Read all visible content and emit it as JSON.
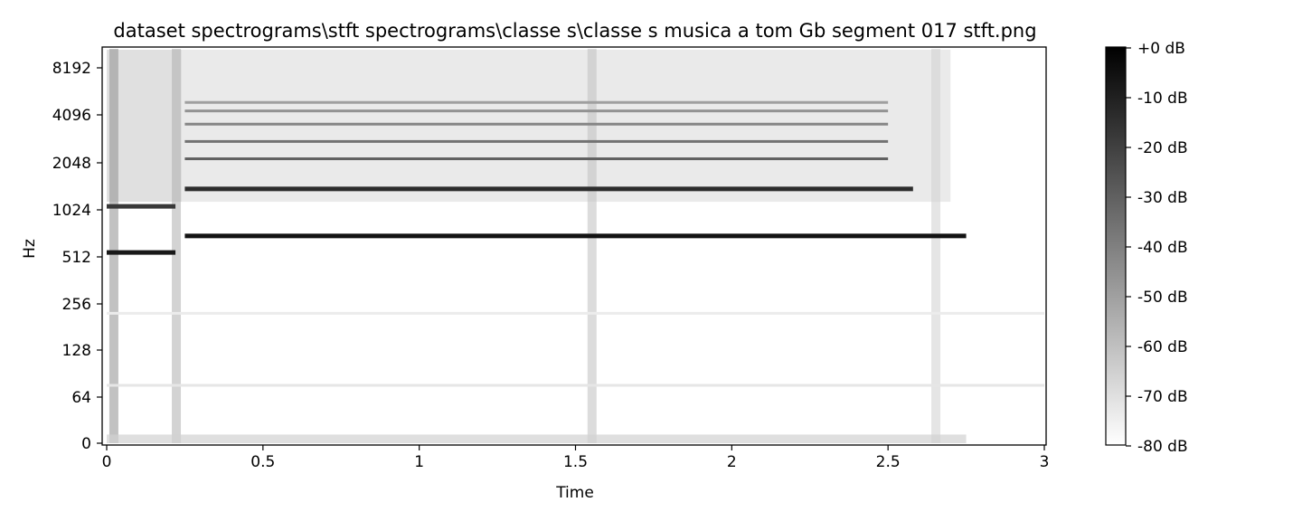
{
  "chart_data": {
    "type": "heatmap",
    "title": "dataset spectrograms\\stft spectrograms\\classe s\\classe s musica a tom Gb segment 017 stft.png",
    "xlabel": "Time",
    "ylabel": "Hz",
    "x_ticks": [
      {
        "value": 0,
        "label": "0"
      },
      {
        "value": 0.5,
        "label": "0.5"
      },
      {
        "value": 1,
        "label": "1"
      },
      {
        "value": 1.5,
        "label": "1.5"
      },
      {
        "value": 2,
        "label": "2"
      },
      {
        "value": 2.5,
        "label": "2.5"
      },
      {
        "value": 3,
        "label": "3"
      }
    ],
    "y_ticks": [
      {
        "value": 0,
        "label": "0"
      },
      {
        "value": 64,
        "label": "64"
      },
      {
        "value": 128,
        "label": "128"
      },
      {
        "value": 256,
        "label": "256"
      },
      {
        "value": 512,
        "label": "512"
      },
      {
        "value": 1024,
        "label": "1024"
      },
      {
        "value": 2048,
        "label": "2048"
      },
      {
        "value": 4096,
        "label": "4096"
      },
      {
        "value": 8192,
        "label": "8192"
      }
    ],
    "xlim": [
      0,
      3.0
    ],
    "ylim": [
      0,
      11025
    ],
    "y_scale": "symlog",
    "colormap": "greys",
    "colorbar": {
      "ticks": [
        {
          "value": 0,
          "label": "+0 dB"
        },
        {
          "value": -10,
          "label": "-10 dB"
        },
        {
          "value": -20,
          "label": "-20 dB"
        },
        {
          "value": -30,
          "label": "-30 dB"
        },
        {
          "value": -40,
          "label": "-40 dB"
        },
        {
          "value": -50,
          "label": "-50 dB"
        },
        {
          "value": -60,
          "label": "-60 dB"
        },
        {
          "value": -70,
          "label": "-70 dB"
        },
        {
          "value": -80,
          "label": "-80 dB"
        }
      ],
      "range": [
        -80,
        0
      ]
    },
    "harmonics": [
      {
        "start": 0.0,
        "end": 0.22,
        "freq": 560,
        "level": -8
      },
      {
        "start": 0.0,
        "end": 0.22,
        "freq": 1100,
        "level": -18
      },
      {
        "start": 0.25,
        "end": 2.75,
        "freq": 740,
        "level": -6
      },
      {
        "start": 0.25,
        "end": 2.58,
        "freq": 1480,
        "level": -14
      },
      {
        "start": 0.25,
        "end": 2.5,
        "freq": 2220,
        "level": -30
      },
      {
        "start": 0.25,
        "end": 2.5,
        "freq": 2960,
        "level": -36
      },
      {
        "start": 0.25,
        "end": 2.5,
        "freq": 3700,
        "level": -42
      },
      {
        "start": 0.25,
        "end": 2.5,
        "freq": 4440,
        "level": -46
      },
      {
        "start": 0.25,
        "end": 2.5,
        "freq": 5180,
        "level": -50
      },
      {
        "start": 0.0,
        "end": 3.0,
        "freq": 80,
        "level": -72
      },
      {
        "start": 0.0,
        "end": 3.0,
        "freq": 230,
        "level": -74
      }
    ],
    "transients": [
      {
        "time": 0.02,
        "level": -45
      },
      {
        "time": 0.22,
        "level": -55
      },
      {
        "time": 1.55,
        "level": -60
      },
      {
        "time": 2.65,
        "level": -65
      }
    ]
  }
}
